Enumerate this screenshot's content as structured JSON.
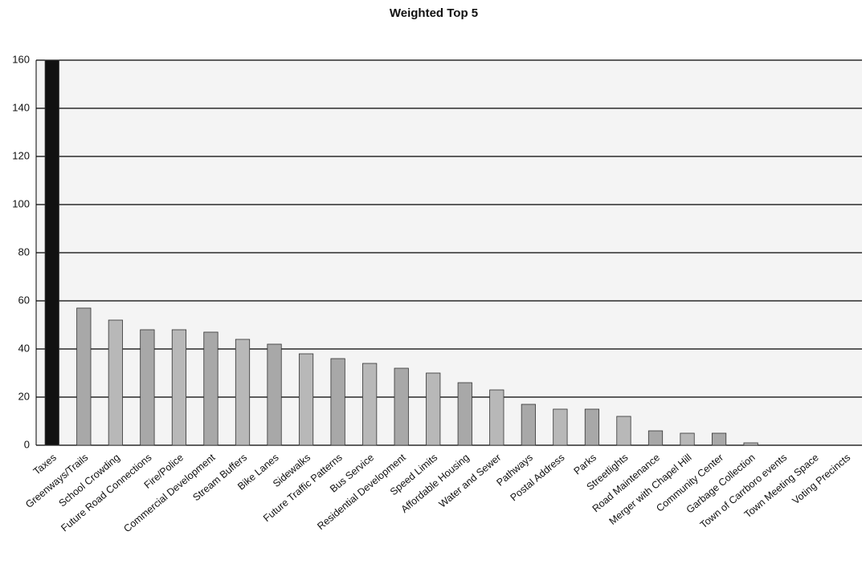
{
  "chart_data": {
    "type": "bar",
    "title": "Weighted Top 5",
    "categories": [
      "Taxes",
      "Greenways/Trails",
      "School Crowding",
      "Future Road Connections",
      "Fire/Police",
      "Commercial Development",
      "Stream Buffers",
      "Bike Lanes",
      "Sidewalks",
      "Future Traffic Patterns",
      "Bus Service",
      "Residential Development",
      "Speed Limits",
      "Affordable Housing",
      "Water and Sewer",
      "Pathways",
      "Postal Address",
      "Parks",
      "Streetlights",
      "Road Maintenance",
      "Merger with Chapel Hill",
      "Community Center",
      "Garbage Collection",
      "Town of Carrboro events",
      "Town Meeting Space",
      "Voting Precincts"
    ],
    "values": [
      160,
      57,
      52,
      48,
      48,
      47,
      44,
      42,
      38,
      36,
      34,
      32,
      30,
      26,
      23,
      17,
      15,
      15,
      12,
      6,
      5,
      5,
      1,
      0,
      0,
      0
    ],
    "colors": [
      "#111111",
      "#a8a8a8",
      "#b8b8b8",
      "#a8a8a8",
      "#b8b8b8",
      "#a8a8a8",
      "#b8b8b8",
      "#a8a8a8",
      "#b8b8b8",
      "#a8a8a8",
      "#b8b8b8",
      "#a8a8a8",
      "#b8b8b8",
      "#a8a8a8",
      "#b8b8b8",
      "#a8a8a8",
      "#b8b8b8",
      "#a8a8a8",
      "#b8b8b8",
      "#a8a8a8",
      "#b8b8b8",
      "#a8a8a8",
      "#b8b8b8",
      "#a8a8a8",
      "#b8b8b8",
      "#a8a8a8"
    ],
    "ylim": [
      0,
      160
    ],
    "yticks": [
      0,
      20,
      40,
      60,
      80,
      100,
      120,
      140,
      160
    ],
    "grid": true
  }
}
